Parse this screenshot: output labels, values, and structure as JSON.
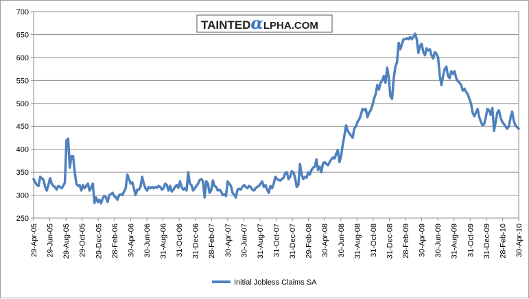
{
  "logo": {
    "prefix": "TAINTED",
    "glyph": "α",
    "suffix": "LPHA.COM"
  },
  "chart_data": {
    "type": "line",
    "title": "",
    "xlabel": "",
    "ylabel": "",
    "ylim": [
      250,
      700
    ],
    "yticks": [
      250,
      300,
      350,
      400,
      450,
      500,
      550,
      600,
      650,
      700
    ],
    "grid": true,
    "legend_position": "bottom",
    "x_tick_labels": [
      "29-Apr-05",
      "29-Jun-05",
      "29-Aug-05",
      "29-Oct-05",
      "29-Dec-05",
      "28-Feb-06",
      "30-Apr-06",
      "30-Jun-06",
      "31-Aug-06",
      "31-Oct-06",
      "31-Dec-06",
      "28-Feb-07",
      "30-Apr-07",
      "30-Jun-07",
      "31-Aug-07",
      "31-Oct-07",
      "31-Dec-07",
      "29-Feb-08",
      "30-Apr-08",
      "30-Jun-08",
      "31-Aug-08",
      "31-Oct-08",
      "31-Dec-08",
      "28-Feb-09",
      "30-Apr-09",
      "30-Jun-09",
      "31-Aug-09",
      "31-Oct-09",
      "31-Dec-09",
      "28-Feb-10",
      "30-Apr-10"
    ],
    "series": [
      {
        "name": "Initial Jobless Claims SA",
        "color": "#4f81bd",
        "values": [
          335,
          328,
          322,
          320,
          340,
          337,
          333,
          318,
          310,
          322,
          337,
          325,
          320,
          318,
          312,
          320,
          318,
          315,
          320,
          327,
          420,
          423,
          360,
          385,
          385,
          350,
          325,
          320,
          322,
          310,
          322,
          315,
          320,
          325,
          310,
          316,
          325,
          283,
          295,
          285,
          290,
          282,
          293,
          298,
          295,
          285,
          300,
          302,
          305,
          298,
          295,
          290,
          300,
          302,
          300,
          308,
          315,
          345,
          335,
          325,
          328,
          315,
          300,
          312,
          312,
          318,
          340,
          325,
          315,
          310,
          318,
          315,
          318,
          315,
          318,
          316,
          320,
          318,
          312,
          315,
          325,
          322,
          310,
          320,
          308,
          312,
          318,
          322,
          316,
          330,
          318,
          312,
          315,
          310,
          350,
          325,
          322,
          310,
          315,
          320,
          325,
          333,
          335,
          330,
          295,
          330,
          325,
          305,
          310,
          332,
          320,
          318,
          310,
          312,
          308,
          300,
          302,
          298,
          330,
          325,
          320,
          305,
          300,
          295,
          312,
          314,
          312,
          318,
          322,
          318,
          315,
          320,
          318,
          312,
          310,
          315,
          318,
          320,
          325,
          330,
          318,
          322,
          312,
          305,
          320,
          315,
          325,
          340,
          335,
          333,
          332,
          335,
          338,
          348,
          350,
          335,
          340,
          352,
          350,
          338,
          318,
          322,
          368,
          345,
          335,
          340,
          338,
          350,
          345,
          355,
          360,
          362,
          378,
          355,
          362,
          350,
          370,
          372,
          368,
          365,
          372,
          378,
          382,
          380,
          390,
          398,
          372,
          385,
          410,
          430,
          452,
          440,
          435,
          430,
          425,
          445,
          450,
          460,
          465,
          475,
          488,
          485,
          488,
          470,
          480,
          485,
          495,
          510,
          520,
          540,
          530,
          545,
          550,
          560,
          545,
          578,
          555,
          515,
          510,
          555,
          580,
          590,
          632,
          618,
          630,
          640,
          640,
          642,
          640,
          645,
          640,
          645,
          652,
          640,
          610,
          625,
          630,
          612,
          605,
          620,
          615,
          618,
          605,
          598,
          612,
          608,
          600,
          560,
          540,
          560,
          575,
          580,
          560,
          555,
          570,
          565,
          570,
          555,
          548,
          545,
          540,
          528,
          532,
          525,
          520,
          510,
          500,
          480,
          472,
          480,
          488,
          470,
          460,
          452,
          455,
          470,
          488,
          485,
          475,
          490,
          440,
          460,
          480,
          485,
          468,
          460,
          455,
          450,
          445,
          450,
          468,
          482,
          462,
          452,
          448,
          445
        ]
      }
    ]
  }
}
